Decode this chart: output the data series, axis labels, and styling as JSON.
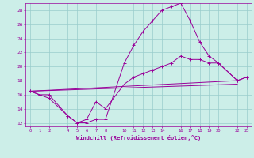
{
  "xlabel": "Windchill (Refroidissement éolien,°C)",
  "bg_color": "#cceee8",
  "line_color": "#990099",
  "grid_color": "#99cccc",
  "xlim": [
    -0.5,
    23.5
  ],
  "ylim": [
    11.5,
    29.0
  ],
  "xticks": [
    0,
    1,
    2,
    4,
    5,
    6,
    7,
    8,
    10,
    11,
    12,
    13,
    14,
    16,
    17,
    18,
    19,
    20,
    22,
    23
  ],
  "yticks": [
    12,
    14,
    16,
    18,
    20,
    22,
    24,
    26,
    28
  ],
  "series": [
    {
      "x": [
        0,
        1,
        2,
        4,
        5,
        6,
        7,
        8,
        10,
        11,
        12,
        13,
        14,
        15,
        16,
        17,
        18,
        19,
        20,
        22,
        23
      ],
      "y": [
        16.5,
        16.0,
        15.5,
        13.0,
        12.0,
        12.0,
        12.5,
        12.5,
        20.5,
        23.0,
        25.0,
        26.5,
        28.0,
        28.5,
        29.0,
        26.5,
        23.5,
        21.5,
        20.5,
        18.0,
        18.5
      ],
      "marker": true
    },
    {
      "x": [
        0,
        1,
        2,
        4,
        5,
        6,
        7,
        8,
        10,
        11,
        12,
        13,
        14,
        15,
        16,
        17,
        18,
        19,
        20,
        22,
        23
      ],
      "y": [
        16.5,
        16.0,
        16.0,
        13.0,
        12.0,
        12.5,
        15.0,
        14.0,
        17.5,
        18.5,
        19.0,
        19.5,
        20.0,
        20.5,
        21.5,
        21.0,
        21.0,
        20.5,
        20.5,
        18.0,
        18.5
      ],
      "marker": true
    },
    {
      "x": [
        0,
        22
      ],
      "y": [
        16.5,
        18.0
      ],
      "marker": false
    },
    {
      "x": [
        0,
        22
      ],
      "y": [
        16.5,
        17.5
      ],
      "marker": false
    }
  ]
}
